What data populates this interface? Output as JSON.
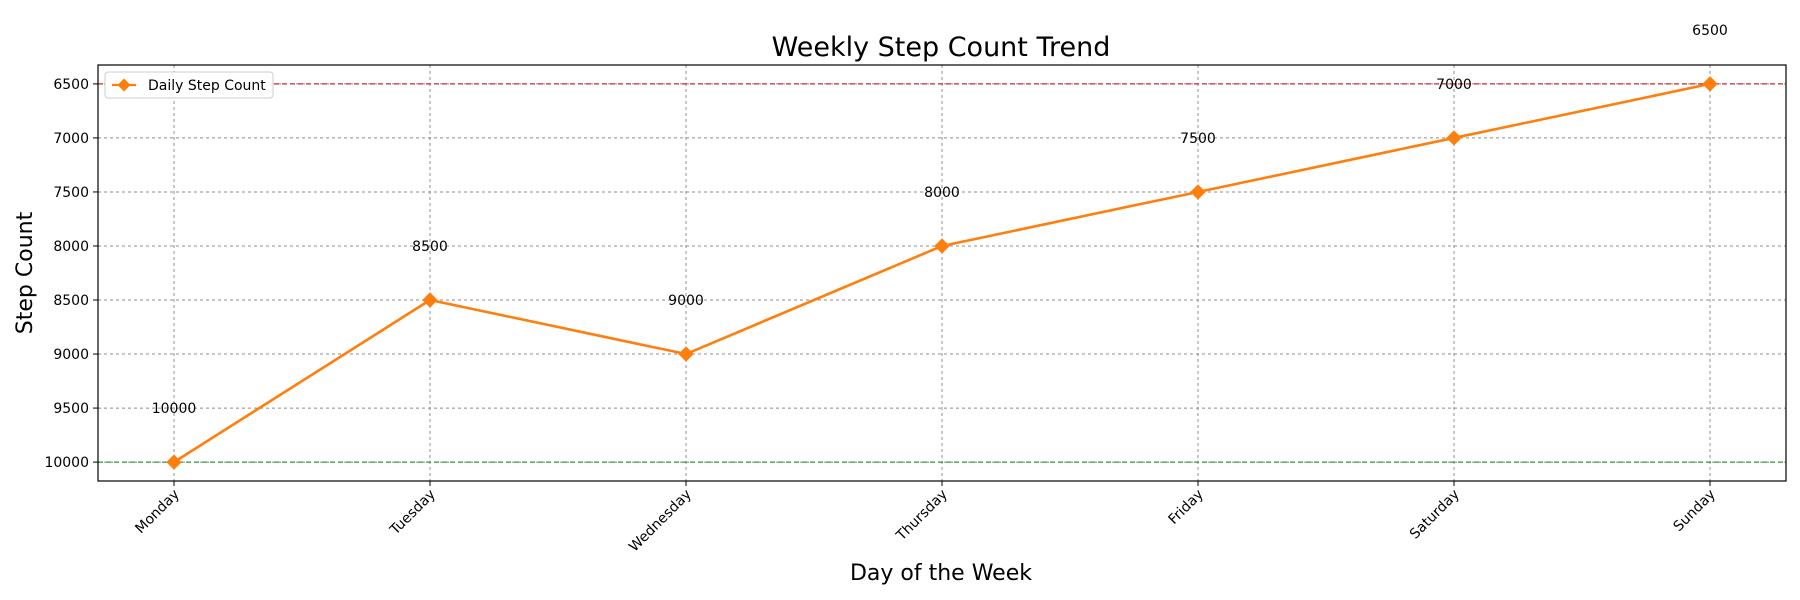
{
  "chart_data": {
    "type": "line",
    "title": "Weekly Step Count Trend",
    "xlabel": "Day of the Week",
    "ylabel": "Step Count",
    "categories": [
      "Monday",
      "Tuesday",
      "Wednesday",
      "Thursday",
      "Friday",
      "Saturday",
      "Sunday"
    ],
    "series": [
      {
        "name": "Daily Step Count",
        "values": [
          10000,
          8500,
          9000,
          8000,
          7500,
          7000,
          6500
        ],
        "color": "#ff7f0e",
        "marker": "diamond"
      }
    ],
    "data_labels": [
      "10000",
      "8500",
      "9000",
      "8000",
      "7500",
      "7000",
      "6500"
    ],
    "y_axis": {
      "inverted": true,
      "range": [
        6325,
        10175
      ],
      "ticks": [
        6500,
        7000,
        7500,
        8000,
        8500,
        9000,
        9500,
        10000
      ],
      "tick_labels": [
        "6500",
        "7000",
        "7500",
        "8000",
        "8500",
        "9000",
        "9500",
        "10000"
      ]
    },
    "reference_lines": [
      {
        "value": 6500,
        "color": "#d62728"
      },
      {
        "value": 10000,
        "color": "#2ca02c"
      }
    ],
    "grid": true,
    "legend": "top-left"
  }
}
